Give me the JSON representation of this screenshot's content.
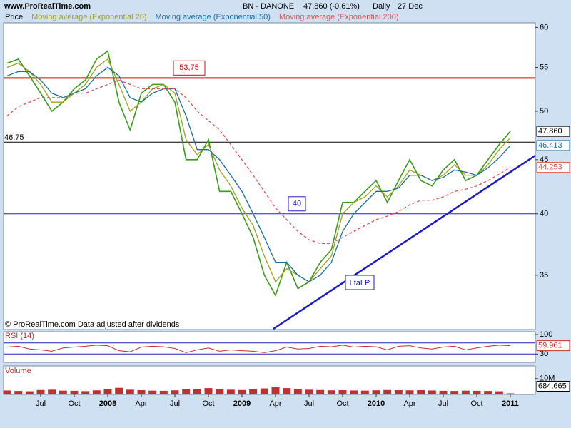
{
  "chart_data": [
    {
      "type": "line",
      "source": "www.ProRealTime.com",
      "title": "BN - DANONE",
      "subtitle": "47.860 (-0.61%)",
      "interval": "Daily",
      "date": "27 Dec",
      "note": "© ProRealTime.com  Data adjusted after dividends",
      "categories": [
        null,
        null,
        null,
        "Jul",
        null,
        null,
        "Oct",
        null,
        null,
        "2008",
        null,
        null,
        "Apr",
        null,
        null,
        "Jul",
        null,
        null,
        "Oct",
        null,
        null,
        "2009",
        null,
        null,
        "Apr",
        null,
        null,
        "Jul",
        null,
        null,
        "Oct",
        null,
        null,
        "2010",
        null,
        null,
        "Apr",
        null,
        null,
        "Jul",
        null,
        null,
        "Oct",
        null,
        null,
        "2011"
      ],
      "log_scale": true,
      "ylim": [
        31.1,
        60.6
      ],
      "yticks": [
        35,
        40,
        45,
        50,
        55,
        60
      ],
      "series": [
        {
          "name": "Price",
          "color": "#3a9a1a",
          "last_label": "47.860",
          "values": [
            55.5,
            56,
            54,
            52,
            50,
            51,
            52.5,
            53.5,
            56,
            57,
            51,
            48,
            52,
            53,
            53,
            51,
            45,
            45,
            47,
            42,
            42,
            40,
            38,
            35,
            33.5,
            36,
            34,
            34.5,
            36,
            37,
            41,
            41,
            42,
            43,
            41,
            43,
            45,
            43,
            42.5,
            44,
            45,
            43,
            43.5,
            45,
            46.5,
            47.86
          ]
        },
        {
          "name": "Moving average (Exponential 20)",
          "color": "#a0a020",
          "values": [
            55,
            55.5,
            54.5,
            53,
            51,
            51,
            52,
            53,
            55,
            56,
            53,
            50,
            51,
            52.5,
            53,
            52,
            47,
            45.5,
            46.5,
            44,
            42.5,
            40.5,
            39,
            36.5,
            34.5,
            35.5,
            35,
            34.5,
            35.5,
            36.5,
            40,
            41,
            41.5,
            42.5,
            41.5,
            42.5,
            44,
            43.5,
            43,
            43.5,
            44.5,
            43.5,
            43.5,
            44.5,
            46,
            47.2
          ]
        },
        {
          "name": "Moving average (Exponential 50)",
          "color": "#1a6fa0",
          "values": [
            54,
            54.5,
            54.5,
            53.5,
            52,
            51.5,
            52,
            52.5,
            54,
            55,
            54,
            51.5,
            51,
            52,
            52.5,
            52.5,
            49.5,
            46,
            46,
            45,
            43.5,
            42,
            40,
            38,
            36,
            36,
            35,
            34.5,
            35,
            36,
            38.5,
            40,
            41,
            42,
            42,
            42.3,
            43.5,
            43.5,
            43,
            43.3,
            44,
            43.8,
            43.5,
            44.2,
            45.2,
            46.413
          ]
        },
        {
          "name": "Moving average (Exponential 200)",
          "color": "#e05050",
          "dashed": true,
          "values": [
            49.5,
            50.5,
            51,
            51.5,
            51.5,
            51.5,
            52,
            52,
            52.5,
            53,
            53.5,
            53,
            52.5,
            52.5,
            52.5,
            52.5,
            51.5,
            50,
            49,
            48,
            46.5,
            45,
            43.5,
            42,
            40.5,
            39.5,
            38.5,
            37.8,
            37.5,
            37.5,
            38,
            38.5,
            39,
            39.5,
            39.8,
            40.2,
            40.8,
            41.2,
            41.2,
            41.5,
            42,
            42.2,
            42.5,
            43,
            43.6,
            44.253
          ]
        }
      ],
      "levels": [
        {
          "value": 53.75,
          "label": "53,75",
          "color": "#d01010",
          "boxed": true
        },
        {
          "value": 40,
          "label": "40",
          "color": "#2020c0",
          "boxed": true
        },
        {
          "value": 46.75,
          "label": "46.75",
          "color": "#000000",
          "boxed": false
        }
      ],
      "trendline_label": "LtaLP"
    },
    {
      "type": "line",
      "title": "RSI (14)",
      "color": "#c03030",
      "ylim": [
        0,
        100
      ],
      "yticks": [
        30,
        100
      ],
      "bands": [
        70,
        30
      ],
      "values": [
        55,
        58,
        48,
        45,
        40,
        52,
        55,
        58,
        62,
        60,
        42,
        38,
        55,
        58,
        56,
        50,
        35,
        45,
        52,
        40,
        45,
        42,
        40,
        35,
        42,
        55,
        48,
        50,
        58,
        56,
        62,
        55,
        58,
        56,
        45,
        58,
        60,
        52,
        48,
        55,
        58,
        45,
        52,
        58,
        62,
        59.961
      ]
    },
    {
      "type": "bar",
      "title": "Volume",
      "color": "#c03030",
      "ylim": [
        0,
        18000000
      ],
      "yticks": [
        {
          "value": 10000000,
          "label": "10M"
        }
      ],
      "last_label": "684,665",
      "values": [
        2500000,
        2200000,
        2000000,
        2800000,
        3000000,
        2400000,
        2300000,
        2100000,
        2600000,
        3500000,
        4200000,
        3000000,
        2700000,
        2400000,
        2300000,
        2600000,
        3500000,
        3200000,
        4000000,
        3500000,
        3000000,
        2800000,
        3200000,
        3800000,
        4500000,
        4000000,
        3500000,
        3000000,
        2800000,
        2600000,
        2700000,
        2500000,
        2400000,
        2600000,
        2800000,
        2700000,
        2600000,
        2700000,
        2500000,
        2300000,
        2200000,
        2400000,
        2300000,
        2200000,
        2000000,
        684665
      ]
    }
  ]
}
